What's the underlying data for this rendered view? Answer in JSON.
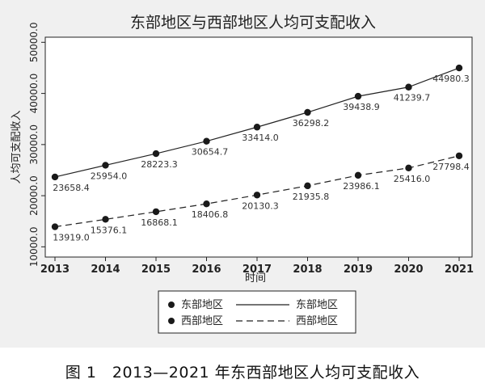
{
  "caption": "图 1　2013—2021 年东西部地区人均可支配收入",
  "chart_data": {
    "type": "line",
    "title": "东部地区与西部地区人均可支配收入",
    "xlabel": "时间",
    "ylabel": "人均可支配收入",
    "x": [
      "2013",
      "2014",
      "2015",
      "2016",
      "2017",
      "2018",
      "2019",
      "2020",
      "2021"
    ],
    "ylim": [
      8000,
      51000
    ],
    "yticks": [
      "10000.0",
      "20000.0",
      "30000.0",
      "40000.0",
      "50000.0"
    ],
    "ytick_values": [
      10000,
      20000,
      30000,
      40000,
      50000
    ],
    "grid": false,
    "legend_position": "bottom",
    "series": [
      {
        "name": "东部地区",
        "line_style": "solid",
        "values": [
          23658.4,
          25954.0,
          28223.3,
          30654.7,
          33414.0,
          36298.2,
          39438.9,
          41239.7,
          44980.3
        ],
        "labels": [
          "23658.4",
          "25954.0",
          "28223.3",
          "30654.7",
          "33414.0",
          "36298.2",
          "39438.9",
          "41239.7",
          "44980.3"
        ]
      },
      {
        "name": "西部地区",
        "line_style": "dashed",
        "values": [
          13919.0,
          15376.1,
          16868.1,
          18406.8,
          20130.3,
          21935.8,
          23986.1,
          25416.0,
          27798.4
        ],
        "labels": [
          "13919.0",
          "15376.1",
          "16868.1",
          "18406.8",
          "20130.3",
          "21935.8",
          "23986.1",
          "25416.0",
          "27798.4"
        ]
      }
    ]
  }
}
